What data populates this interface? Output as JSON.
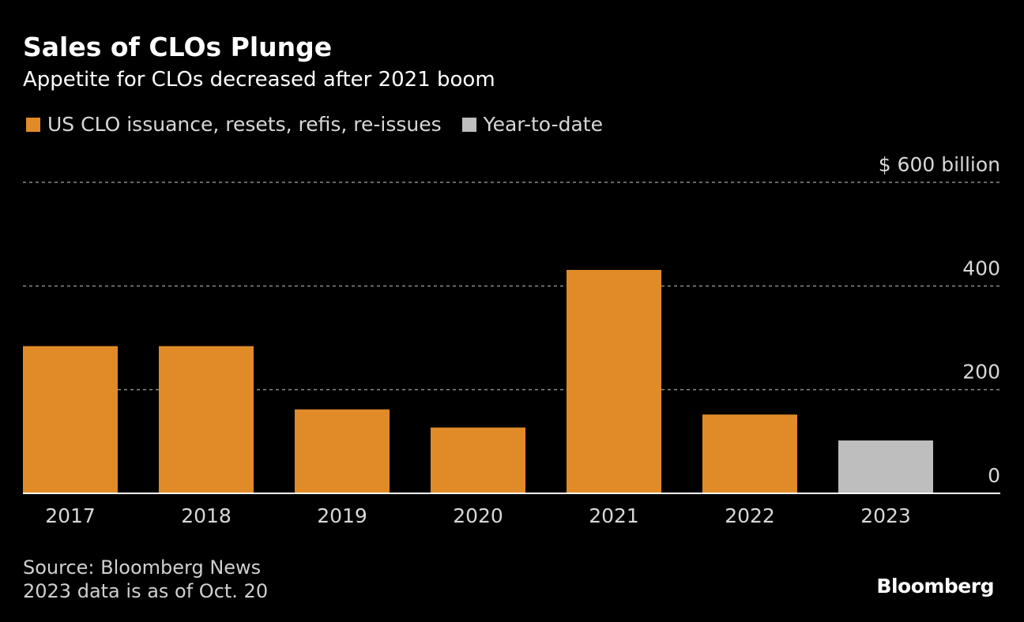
{
  "header": {
    "title": "Sales of CLOs Plunge",
    "subtitle": "Appetite for CLOs decreased after 2021 boom"
  },
  "legend": {
    "items": [
      {
        "label": "US CLO issuance, resets, refis, re-issues",
        "color": "#E08B27"
      },
      {
        "label": "Year-to-date",
        "color": "#BEBEBE"
      }
    ]
  },
  "footer": {
    "source": "Source: Bloomberg News",
    "note": "2023 data is as of Oct. 20",
    "brand": "Bloomberg"
  },
  "chart_data": {
    "type": "bar",
    "categories": [
      "2017",
      "2018",
      "2019",
      "2020",
      "2021",
      "2022",
      "2023"
    ],
    "values": [
      284,
      284,
      162,
      127,
      431,
      152,
      102
    ],
    "colors": [
      "#E08B27",
      "#E08B27",
      "#E08B27",
      "#E08B27",
      "#E08B27",
      "#E08B27",
      "#BEBEBE"
    ],
    "ylim": [
      0,
      600
    ],
    "yticks": [
      0,
      200,
      400,
      600
    ],
    "ytick_labels": [
      "0",
      "200",
      "400",
      "$ 600  billion"
    ],
    "grid": true
  }
}
